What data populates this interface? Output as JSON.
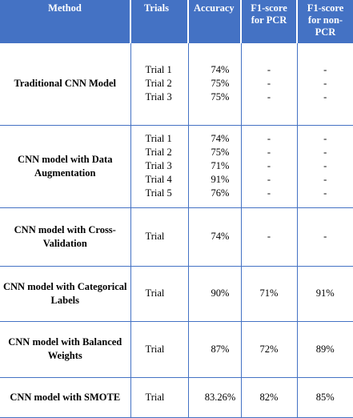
{
  "header": {
    "method": "Method",
    "trials": "Trials",
    "accuracy": "Accuracy",
    "f1_pcr": "F1-score for PCR",
    "f1_non_pcr": "F1-score for non-PCR"
  },
  "rows": [
    {
      "method": "Traditional CNN Model",
      "trials": [
        "Trial 1",
        "Trial 2",
        "Trial 3"
      ],
      "accuracy": [
        "74%",
        "75%",
        "75%"
      ],
      "f1_pcr": [
        "-",
        "-",
        "-"
      ],
      "f1_non_pcr": [
        "-",
        "-",
        "-"
      ]
    },
    {
      "method": "CNN model with Data Augmentation",
      "trials": [
        "Trial 1",
        "Trial 2",
        "Trial 3",
        "Trial 4",
        "Trial 5"
      ],
      "accuracy": [
        "74%",
        "75%",
        "71%",
        "91%",
        "76%"
      ],
      "f1_pcr": [
        "-",
        "-",
        "-",
        "-",
        "-"
      ],
      "f1_non_pcr": [
        "-",
        "-",
        "-",
        "-",
        "-"
      ]
    },
    {
      "method": "CNN model with Cross-Validation",
      "trials": [
        "Trial"
      ],
      "accuracy": [
        "74%"
      ],
      "f1_pcr": [
        "-"
      ],
      "f1_non_pcr": [
        "-"
      ]
    },
    {
      "method": "CNN model with Categorical Labels",
      "trials": [
        "Trial"
      ],
      "accuracy": [
        "90%"
      ],
      "f1_pcr": [
        "71%"
      ],
      "f1_non_pcr": [
        "91%"
      ]
    },
    {
      "method": "CNN model with Balanced Weights",
      "trials": [
        "Trial"
      ],
      "accuracy": [
        "87%"
      ],
      "f1_pcr": [
        "72%"
      ],
      "f1_non_pcr": [
        "89%"
      ]
    },
    {
      "method": "CNN model with SMOTE",
      "trials": [
        "Trial"
      ],
      "accuracy": [
        "83.26%"
      ],
      "f1_pcr": [
        "82%"
      ],
      "f1_non_pcr": [
        "85%"
      ]
    }
  ]
}
